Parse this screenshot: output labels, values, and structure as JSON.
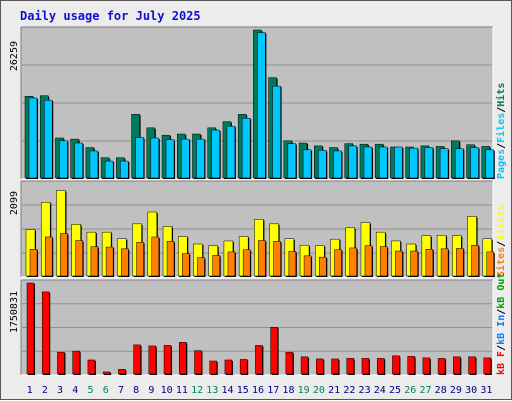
{
  "title": "Daily usage for July 2025",
  "colors": {
    "hits": "#007a5e",
    "files": "#00c8ff",
    "pages": "#00c8ff",
    "visits": "#ffff00",
    "sites": "#ff8000",
    "kb_in": "#0080ff",
    "kb_out": "#00a000",
    "kb_f": "#ff0000",
    "weekend_day": "#008060",
    "weekday_day": "#000080",
    "panel_bg": "#c0c0c0"
  },
  "chart_data": [
    {
      "type": "bar",
      "title": "Daily usage for July 2025",
      "panel": "hits-files-pages",
      "categories": [
        "1",
        "2",
        "3",
        "4",
        "5",
        "6",
        "7",
        "8",
        "9",
        "10",
        "11",
        "12",
        "13",
        "14",
        "15",
        "16",
        "17",
        "18",
        "19",
        "20",
        "21",
        "22",
        "23",
        "24",
        "25",
        "26",
        "27",
        "28",
        "29",
        "30",
        "31"
      ],
      "ymax_label": "26259",
      "ylim": [
        0,
        26259
      ],
      "legend": [
        "Pages",
        "/",
        "Files",
        "/",
        "Hits"
      ],
      "series": [
        {
          "name": "Hits",
          "values": [
            14500,
            14600,
            7100,
            6900,
            5400,
            3600,
            3600,
            11300,
            8900,
            7600,
            7800,
            7800,
            8900,
            10000,
            11300,
            26259,
            17800,
            6600,
            6200,
            5700,
            5400,
            6100,
            6000,
            6000,
            5500,
            5500,
            5700,
            5600,
            6600,
            5900,
            5600
          ]
        },
        {
          "name": "Files",
          "values": [
            14200,
            13800,
            6600,
            6200,
            4800,
            3000,
            3000,
            7200,
            7100,
            6800,
            6900,
            6900,
            8500,
            9200,
            10600,
            25800,
            16300,
            6100,
            5000,
            4900,
            4800,
            5700,
            5500,
            5500,
            5500,
            5300,
            5400,
            5200,
            5200,
            5400,
            5000
          ]
        }
      ]
    },
    {
      "type": "bar",
      "panel": "visits-sites",
      "categories": [
        "1",
        "2",
        "3",
        "4",
        "5",
        "6",
        "7",
        "8",
        "9",
        "10",
        "11",
        "12",
        "13",
        "14",
        "15",
        "16",
        "17",
        "18",
        "19",
        "20",
        "21",
        "22",
        "23",
        "24",
        "25",
        "26",
        "27",
        "28",
        "29",
        "30",
        "31"
      ],
      "ymax_label": "2099",
      "ylim": [
        0,
        2099
      ],
      "legend": [
        "Sites",
        "/",
        "Visits"
      ],
      "series": [
        {
          "name": "Visits",
          "values": [
            1060,
            1680,
            1950,
            1180,
            1000,
            1000,
            850,
            1190,
            1460,
            1130,
            900,
            730,
            690,
            800,
            900,
            1290,
            1190,
            850,
            700,
            690,
            840,
            1100,
            1220,
            1000,
            800,
            730,
            920,
            930,
            920,
            1360,
            850
          ]
        },
        {
          "name": "Sites",
          "values": [
            610,
            890,
            970,
            810,
            670,
            660,
            620,
            770,
            890,
            790,
            510,
            420,
            470,
            550,
            600,
            810,
            790,
            560,
            460,
            430,
            600,
            640,
            690,
            670,
            570,
            570,
            610,
            620,
            630,
            700,
            550
          ]
        }
      ]
    },
    {
      "type": "bar",
      "panel": "kbF-kbIn-kbOut",
      "categories": [
        "1",
        "2",
        "3",
        "4",
        "5",
        "6",
        "7",
        "8",
        "9",
        "10",
        "11",
        "12",
        "13",
        "14",
        "15",
        "16",
        "17",
        "18",
        "19",
        "20",
        "21",
        "22",
        "23",
        "24",
        "25",
        "26",
        "27",
        "28",
        "29",
        "30",
        "31"
      ],
      "ymax_label": "1750831",
      "ylim": [
        0,
        1750831
      ],
      "legend": [
        "kB F",
        "/",
        "kB In",
        "/",
        "kB Out"
      ],
      "series": [
        {
          "name": "kB F",
          "values": [
            1750831,
            1580000,
            420000,
            440000,
            270000,
            40000,
            90000,
            560000,
            540000,
            550000,
            610000,
            450000,
            250000,
            270000,
            280000,
            550000,
            900000,
            420000,
            330000,
            290000,
            290000,
            300000,
            300000,
            300000,
            350000,
            340000,
            310000,
            300000,
            330000,
            330000,
            310000
          ]
        }
      ]
    }
  ],
  "weekend_days": [
    "5",
    "6",
    "12",
    "13",
    "19",
    "20",
    "26",
    "27"
  ]
}
